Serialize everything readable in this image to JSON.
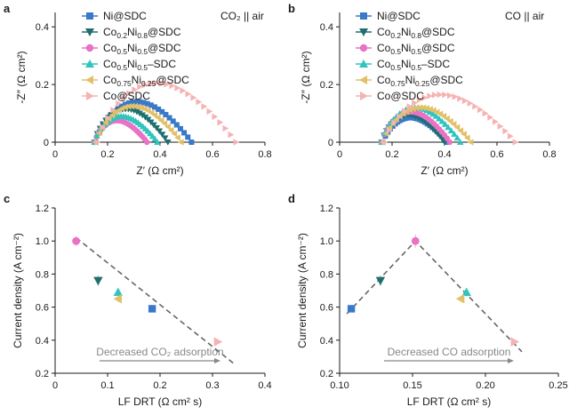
{
  "series_styles": [
    {
      "name": "Ni@SDC",
      "color": "#3a78c9",
      "marker": "square"
    },
    {
      "name": "Co0.2Ni0.8@SDC",
      "color": "#1f6f6f",
      "marker": "triangle-down"
    },
    {
      "name": "Co0.5Ni0.5@SDC",
      "color": "#e872c5",
      "marker": "circle"
    },
    {
      "name": "Co0.5Ni0.5–SDC",
      "color": "#2fc4bd",
      "marker": "triangle-up"
    },
    {
      "name": "Co0.75Ni0.25@SDC",
      "color": "#e2c06a",
      "marker": "triangle-left"
    },
    {
      "name": "Co@SDC",
      "color": "#f6b3b3",
      "marker": "triangle-right"
    }
  ],
  "chart_data": [
    {
      "panel": "a",
      "type": "scatter",
      "condition_label": "CO₂ || air",
      "xlabel": "Z′ (Ω cm²)",
      "ylabel": "-Z″ (Ω cm²)",
      "xlim": [
        0,
        0.8
      ],
      "ylim": [
        0,
        0.45
      ],
      "xticks": [
        "0",
        "0.2",
        "0.4",
        "0.6",
        "0.8"
      ],
      "yticks": [
        "0",
        "0.2",
        "0.4"
      ],
      "legend": {
        "position": "top-left",
        "entries": [
          {
            "base": "Ni@SDC",
            "sub": "",
            "tail": ""
          },
          {
            "base": "Co",
            "sub": "0.2",
            "mid": "Ni",
            "sub2": "0.8",
            "tail": "@SDC"
          },
          {
            "base": "Co",
            "sub": "0.5",
            "mid": "Ni",
            "sub2": "0.5",
            "tail": "@SDC"
          },
          {
            "base": "Co",
            "sub": "0.5",
            "mid": "Ni",
            "sub2": "0.5",
            "tail": "–SDC"
          },
          {
            "base": "Co",
            "sub": "0.75",
            "mid": "Ni",
            "sub2": "0.25",
            "tail": "@SDC"
          },
          {
            "base": "Co@SDC",
            "sub": "",
            "tail": ""
          }
        ]
      },
      "series": [
        {
          "name": "Ni@SDC",
          "arc": {
            "x_start": 0.155,
            "x_end": 0.52,
            "peak": 0.14
          }
        },
        {
          "name": "Co0.2Ni0.8@SDC",
          "arc": {
            "x_start": 0.15,
            "x_end": 0.43,
            "peak": 0.115
          }
        },
        {
          "name": "Co0.5Ni0.5@SDC",
          "arc": {
            "x_start": 0.15,
            "x_end": 0.35,
            "peak": 0.075
          }
        },
        {
          "name": "Co0.5Ni0.5–SDC",
          "arc": {
            "x_start": 0.15,
            "x_end": 0.39,
            "peak": 0.09
          }
        },
        {
          "name": "Co0.75Ni0.25@SDC",
          "arc": {
            "x_start": 0.155,
            "x_end": 0.48,
            "peak": 0.125
          }
        },
        {
          "name": "Co@SDC",
          "arc": {
            "x_start": 0.16,
            "x_end": 0.69,
            "peak": 0.205
          }
        }
      ]
    },
    {
      "panel": "b",
      "type": "scatter",
      "condition_label": "CO || air",
      "xlabel": "Z′ (Ω cm²)",
      "ylabel": "-Z″ (Ω cm²)",
      "xlim": [
        0,
        0.8
      ],
      "ylim": [
        0,
        0.45
      ],
      "xticks": [
        "0",
        "0.2",
        "0.4",
        "0.6",
        "0.8"
      ],
      "yticks": [
        "0",
        "0.2",
        "0.4"
      ],
      "series": [
        {
          "name": "Ni@SDC",
          "arc": {
            "x_start": 0.165,
            "x_end": 0.41,
            "peak": 0.085
          }
        },
        {
          "name": "Co0.2Ni0.8@SDC",
          "arc": {
            "x_start": 0.16,
            "x_end": 0.4,
            "peak": 0.095
          }
        },
        {
          "name": "Co0.5Ni0.5@SDC",
          "arc": {
            "x_start": 0.16,
            "x_end": 0.42,
            "peak": 0.105
          }
        },
        {
          "name": "Co0.5Ni0.5–SDC",
          "arc": {
            "x_start": 0.16,
            "x_end": 0.46,
            "peak": 0.12
          }
        },
        {
          "name": "Co0.75Ni0.25@SDC",
          "arc": {
            "x_start": 0.165,
            "x_end": 0.5,
            "peak": 0.12
          }
        },
        {
          "name": "Co@SDC",
          "arc": {
            "x_start": 0.17,
            "x_end": 0.67,
            "peak": 0.165
          }
        }
      ]
    },
    {
      "panel": "c",
      "type": "scatter",
      "xlabel": "LF DRT (Ω cm² s)",
      "ylabel": "Current density (A cm⁻²)",
      "xlim": [
        0,
        0.4
      ],
      "ylim": [
        0.2,
        1.2
      ],
      "xticks": [
        "0",
        "0.1",
        "0.2",
        "0.3",
        "0.4"
      ],
      "yticks": [
        "0.2",
        "0.4",
        "0.6",
        "0.8",
        "1.0",
        "1.2"
      ],
      "annotation": "Decreased CO₂ adsorption",
      "points": [
        {
          "name": "Co0.5Ni0.5@SDC",
          "x": 0.04,
          "y": 1.0,
          "err": 0.03
        },
        {
          "name": "Co0.2Ni0.8@SDC",
          "x": 0.082,
          "y": 0.76,
          "err": 0.03
        },
        {
          "name": "Co0.5Ni0.5–SDC",
          "x": 0.12,
          "y": 0.69,
          "err": 0.025
        },
        {
          "name": "Co0.75Ni0.25@SDC",
          "x": 0.12,
          "y": 0.65,
          "err": 0.02
        },
        {
          "name": "Ni@SDC",
          "x": 0.185,
          "y": 0.59,
          "err": 0.02
        },
        {
          "name": "Co@SDC",
          "x": 0.31,
          "y": 0.39,
          "err": 0.015
        }
      ],
      "trendline": [
        [
          0.04,
          1.02
        ],
        [
          0.34,
          0.26
        ]
      ]
    },
    {
      "panel": "d",
      "type": "scatter",
      "xlabel": "LF DRT (Ω cm² s)",
      "ylabel": "Current density (A cm⁻²)",
      "xlim": [
        0.1,
        0.25
      ],
      "ylim": [
        0.2,
        1.2
      ],
      "xticks": [
        "0.10",
        "0.15",
        "0.20",
        "0.25"
      ],
      "yticks": [
        "0.2",
        "0.4",
        "0.6",
        "0.8",
        "1.0",
        "1.2"
      ],
      "annotation": "Decreased CO adsorption",
      "points": [
        {
          "name": "Ni@SDC",
          "x": 0.108,
          "y": 0.59,
          "err": 0.02
        },
        {
          "name": "Co0.2Ni0.8@SDC",
          "x": 0.128,
          "y": 0.76,
          "err": 0.03
        },
        {
          "name": "Co0.5Ni0.5@SDC",
          "x": 0.152,
          "y": 1.0,
          "err": 0.04
        },
        {
          "name": "Co0.5Ni0.5–SDC",
          "x": 0.187,
          "y": 0.69,
          "err": 0.025
        },
        {
          "name": "Co0.75Ni0.25@SDC",
          "x": 0.183,
          "y": 0.65,
          "err": 0.02
        },
        {
          "name": "Co@SDC",
          "x": 0.22,
          "y": 0.39,
          "err": 0.015
        }
      ],
      "trendline": [
        [
          0.105,
          0.56
        ],
        [
          0.152,
          1.0
        ],
        [
          0.225,
          0.33
        ]
      ]
    }
  ],
  "legend_b": {
    "entries": [
      {
        "base": "Ni@SDC",
        "sub": "",
        "tail": ""
      },
      {
        "base": "Co",
        "sub": "0.2",
        "mid": "Ni",
        "sub2": "0.8",
        "tail": "@SDC"
      },
      {
        "base": "Co",
        "sub": "0.5",
        "mid": "Ni",
        "sub2": "0.5",
        "tail": "@SDC"
      },
      {
        "base": "Co",
        "sub": "0.5",
        "mid": "Ni",
        "sub2": "0.5",
        "tail": "–SDC"
      },
      {
        "base": "Co",
        "sub": "0.75",
        "mid": "Ni",
        "sub2": "0.25",
        "tail": "@SDC"
      },
      {
        "base": "Co@SDC",
        "sub": "",
        "tail": ""
      }
    ]
  }
}
